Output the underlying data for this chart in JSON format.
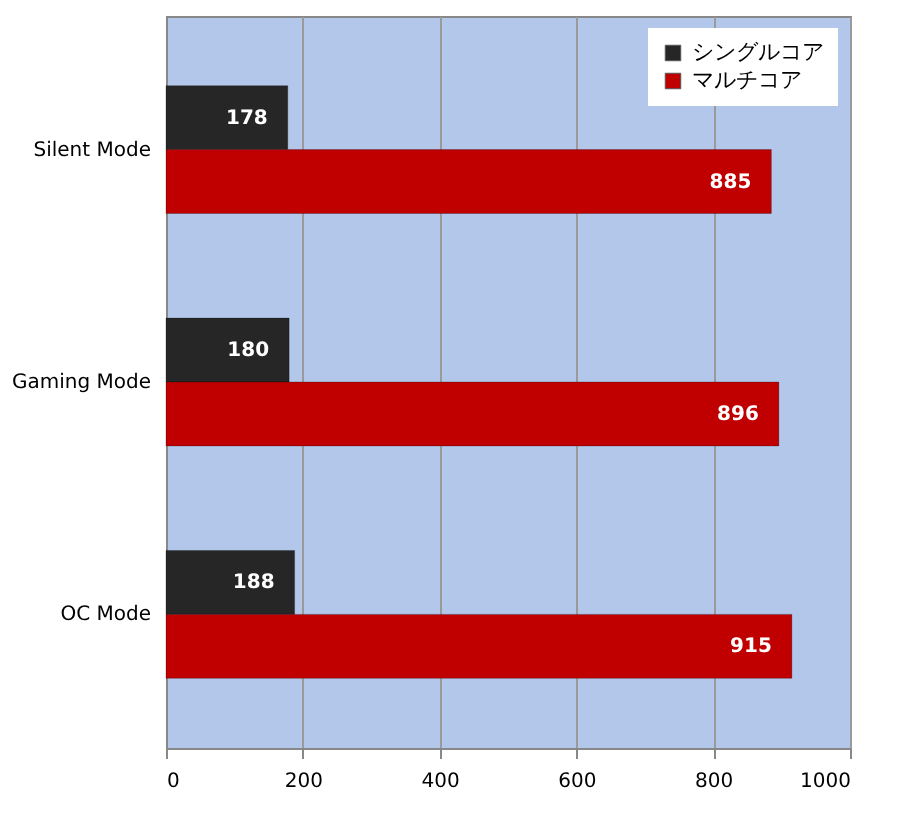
{
  "chart_data": {
    "type": "bar",
    "orientation": "horizontal",
    "categories": [
      "Silent Mode",
      "Gaming Mode",
      "OC Mode"
    ],
    "series": [
      {
        "name": "シングルコア",
        "color": "#262626",
        "values": [
          178,
          180,
          188
        ]
      },
      {
        "name": "マルチコア",
        "color": "#c00000",
        "values": [
          885,
          896,
          915
        ]
      }
    ],
    "xlim": [
      0,
      1000
    ],
    "xticks": [
      0,
      200,
      400,
      600,
      800,
      1000
    ],
    "grid": "x",
    "legend": "top right",
    "data_labels": true
  }
}
